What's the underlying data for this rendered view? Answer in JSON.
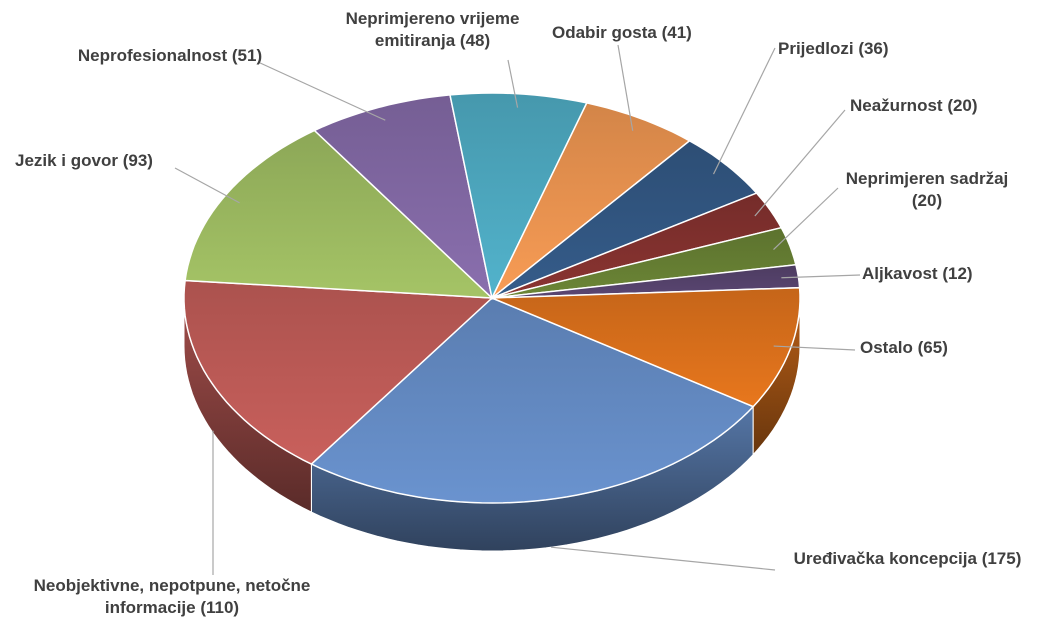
{
  "chart_data": {
    "type": "pie3d",
    "categories": [
      "Uređivačka koncepcija",
      "Neobjektivne, nepotpune, netočne informacije",
      "Jezik i govor",
      "Neprofesionalnost",
      "Neprimjereno vrijeme emitiranja",
      "Odabir gosta",
      "Prijedlozi",
      "Neažurnost",
      "Neprimjeren sadržaj",
      "Aljkavost",
      "Ostalo"
    ],
    "values": [
      175,
      110,
      93,
      51,
      48,
      41,
      36,
      20,
      20,
      12,
      65
    ],
    "value_labels": [
      "(175)",
      "(110)",
      "(93)",
      "(51)",
      "(48)",
      "(41)",
      "(36)",
      "(20)",
      "(20)",
      "(12)",
      "(65)"
    ],
    "colors": [
      "#6a93cf",
      "#c9605c",
      "#a5c466",
      "#8a6fae",
      "#52b3cc",
      "#f89c55",
      "#355c8a",
      "#8a3431",
      "#6c8636",
      "#5a4672",
      "#e8771d"
    ]
  }
}
